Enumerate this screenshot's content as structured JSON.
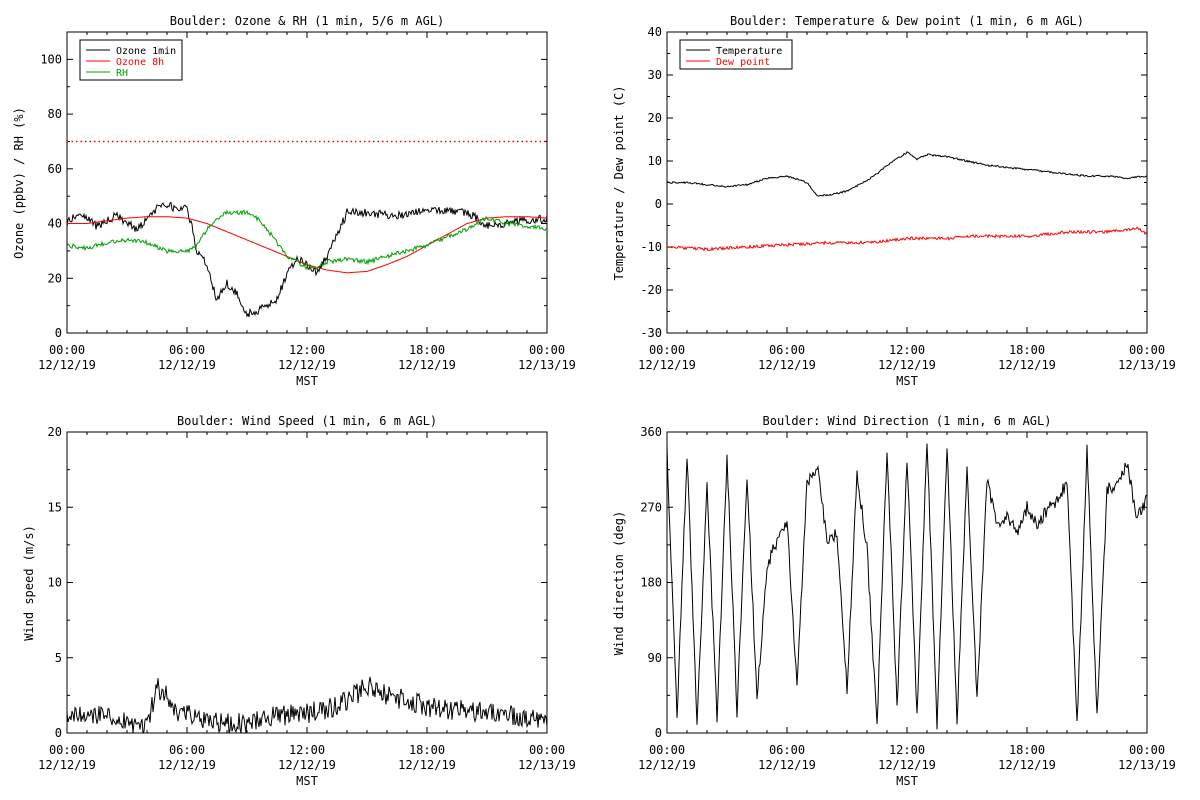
{
  "chart_data": [
    {
      "type": "line",
      "title": "Boulder: Ozone & RH (1 min, 5/6 m AGL)",
      "xlabel": "MST",
      "ylabel": "Ozone (ppbv) / RH (%)",
      "xlim": [
        0,
        24
      ],
      "ylim": [
        0,
        110
      ],
      "yticks": [
        0,
        20,
        40,
        60,
        80,
        100
      ],
      "xticks": [
        {
          "hour": 0,
          "time": "00:00",
          "date": "12/12/19"
        },
        {
          "hour": 6,
          "time": "06:00",
          "date": "12/12/19"
        },
        {
          "hour": 12,
          "time": "12:00",
          "date": "12/12/19"
        },
        {
          "hour": 18,
          "time": "18:00",
          "date": "12/12/19"
        },
        {
          "hour": 24,
          "time": "00:00",
          "date": "12/13/19"
        }
      ],
      "legend_position": "top-left",
      "reference_line": {
        "y": 70,
        "color": "#ff0000",
        "style": "dotted"
      },
      "series": [
        {
          "name": "Ozone 1min",
          "color": "#000000",
          "noise": 1.5,
          "x": [
            0,
            0.5,
            1,
            1.5,
            2,
            2.5,
            3,
            3.5,
            4,
            4.5,
            5,
            5.5,
            6,
            6.2,
            6.5,
            7,
            7.5,
            8,
            8.5,
            9,
            9.5,
            10,
            10.5,
            11,
            11.5,
            12,
            12.5,
            13,
            13.5,
            14,
            15,
            16,
            17,
            18,
            19,
            20,
            20.5,
            21,
            22,
            23,
            24
          ],
          "y": [
            40,
            44,
            42,
            39,
            41,
            43,
            40,
            38,
            41,
            46,
            47,
            45,
            46,
            40,
            30,
            25,
            12,
            18,
            14,
            7,
            8,
            10,
            12,
            22,
            27,
            25,
            22,
            28,
            36,
            44,
            44,
            43,
            43,
            45,
            45,
            44,
            42,
            39,
            40,
            41,
            42
          ]
        },
        {
          "name": "Ozone 8h",
          "color": "#ff0000",
          "noise": 0,
          "x": [
            0,
            1,
            2,
            3,
            4,
            5,
            6,
            7,
            8,
            9,
            10,
            11,
            12,
            13,
            14,
            15,
            16,
            17,
            18,
            19,
            20,
            21,
            22,
            23,
            24
          ],
          "y": [
            40,
            40,
            41,
            42,
            42.5,
            42.5,
            42,
            40,
            37,
            34,
            31,
            28,
            25,
            23,
            22,
            22.5,
            25,
            28,
            32,
            36,
            40,
            42,
            42.5,
            42.5,
            42
          ]
        },
        {
          "name": "RH",
          "color": "#00a000",
          "noise": 0.8,
          "x": [
            0,
            1,
            2,
            3,
            4,
            5,
            6,
            6.5,
            7,
            7.5,
            8,
            9,
            9.5,
            10,
            11,
            12,
            12.5,
            13,
            14,
            15,
            16,
            17,
            18,
            19,
            20,
            21,
            22,
            23,
            24
          ],
          "y": [
            32,
            31,
            33,
            34,
            33,
            30,
            30,
            32,
            38,
            42,
            44,
            44,
            42,
            38,
            28,
            24,
            24,
            26,
            27,
            26,
            28,
            30,
            32,
            35,
            38,
            42,
            40,
            39,
            38
          ]
        }
      ]
    },
    {
      "type": "line",
      "title": "Boulder: Temperature & Dew point (1 min, 6 m AGL)",
      "xlabel": "MST",
      "ylabel": "Temperature / Dew point (C)",
      "xlim": [
        0,
        24
      ],
      "ylim": [
        -30,
        40
      ],
      "yticks": [
        -30,
        -20,
        -10,
        0,
        10,
        20,
        30,
        40
      ],
      "xticks": [
        {
          "hour": 0,
          "time": "00:00",
          "date": "12/12/19"
        },
        {
          "hour": 6,
          "time": "06:00",
          "date": "12/12/19"
        },
        {
          "hour": 12,
          "time": "12:00",
          "date": "12/12/19"
        },
        {
          "hour": 18,
          "time": "18:00",
          "date": "12/12/19"
        },
        {
          "hour": 24,
          "time": "00:00",
          "date": "12/13/19"
        }
      ],
      "legend_position": "top-left",
      "series": [
        {
          "name": "Temperature",
          "color": "#000000",
          "noise": 0.2,
          "x": [
            0,
            1,
            2,
            3,
            4,
            5,
            6,
            7,
            7.5,
            8,
            9,
            10,
            10.5,
            11,
            11.5,
            12,
            12.5,
            13,
            14,
            15,
            16,
            17,
            18,
            19,
            20,
            21,
            22,
            23,
            24
          ],
          "y": [
            5,
            5,
            4.5,
            4,
            4.5,
            6,
            6.5,
            5,
            2,
            2,
            3,
            5.5,
            7,
            9,
            10.5,
            12,
            10.5,
            11.5,
            11,
            10,
            9,
            8.5,
            8,
            7.5,
            7,
            6.5,
            6.5,
            6,
            6.5
          ]
        },
        {
          "name": "Dew point",
          "color": "#ff0000",
          "noise": 0.35,
          "x": [
            0,
            2,
            4,
            6,
            8,
            10,
            11,
            12,
            13,
            14,
            15,
            16,
            17,
            18,
            19,
            20,
            21,
            22,
            23,
            23.5,
            24
          ],
          "y": [
            -10,
            -10.5,
            -10,
            -9.5,
            -9,
            -9,
            -8.5,
            -8,
            -8,
            -8,
            -7.5,
            -7.5,
            -7.5,
            -7.5,
            -7,
            -6.5,
            -6.5,
            -6.5,
            -6,
            -5.5,
            -7
          ]
        }
      ]
    },
    {
      "type": "line",
      "title": "Boulder: Wind Speed (1 min, 6 m AGL)",
      "xlabel": "MST",
      "ylabel": "Wind speed (m/s)",
      "xlim": [
        0,
        24
      ],
      "ylim": [
        0,
        20
      ],
      "yticks": [
        0,
        5,
        10,
        15,
        20
      ],
      "xticks": [
        {
          "hour": 0,
          "time": "00:00",
          "date": "12/12/19"
        },
        {
          "hour": 6,
          "time": "06:00",
          "date": "12/12/19"
        },
        {
          "hour": 12,
          "time": "12:00",
          "date": "12/12/19"
        },
        {
          "hour": 18,
          "time": "18:00",
          "date": "12/12/19"
        },
        {
          "hour": 24,
          "time": "00:00",
          "date": "12/13/19"
        }
      ],
      "series": [
        {
          "name": "",
          "color": "#000000",
          "noise": 0.7,
          "x": [
            0,
            1,
            2,
            3,
            3.5,
            4,
            4.5,
            5,
            5.5,
            6,
            6.5,
            7,
            8,
            9,
            10,
            11,
            12,
            13,
            14,
            14.5,
            15,
            15.5,
            16,
            17,
            18,
            19,
            20,
            21,
            22,
            23,
            24
          ],
          "y": [
            1.3,
            1.2,
            1,
            0.8,
            0.3,
            0.4,
            3,
            2.5,
            1.5,
            1.2,
            1,
            0.8,
            0.6,
            0.7,
            1,
            1.2,
            1.3,
            1.6,
            2.2,
            2.6,
            3.2,
            2.8,
            2.5,
            2.2,
            1.8,
            1.5,
            1.5,
            1.4,
            1.2,
            1,
            1
          ]
        }
      ]
    },
    {
      "type": "line",
      "title": "Boulder: Wind Direction (1 min, 6 m AGL)",
      "xlabel": "MST",
      "ylabel": "Wind direction (deg)",
      "xlim": [
        0,
        24
      ],
      "ylim": [
        0,
        360
      ],
      "yticks": [
        0,
        90,
        180,
        270,
        360
      ],
      "xticks": [
        {
          "hour": 0,
          "time": "00:00",
          "date": "12/12/19"
        },
        {
          "hour": 6,
          "time": "06:00",
          "date": "12/12/19"
        },
        {
          "hour": 12,
          "time": "12:00",
          "date": "12/12/19"
        },
        {
          "hour": 18,
          "time": "18:00",
          "date": "12/12/19"
        },
        {
          "hour": 24,
          "time": "00:00",
          "date": "12/13/19"
        }
      ],
      "series": [
        {
          "name": "",
          "color": "#000000",
          "noise": 8,
          "x": [
            0,
            0.5,
            1,
            1.5,
            2,
            2.5,
            3,
            3.5,
            4,
            4.5,
            5,
            5.5,
            6,
            6.5,
            7,
            7.5,
            8,
            8.5,
            9,
            9.5,
            10,
            10.5,
            11,
            11.5,
            12,
            12.5,
            13,
            13.5,
            14,
            14.5,
            15,
            15.5,
            16,
            16.5,
            17,
            17.5,
            18,
            18.5,
            19,
            19.5,
            20,
            20.5,
            21,
            21.5,
            22,
            22.5,
            23,
            23.5,
            24
          ],
          "y": [
            340,
            20,
            335,
            10,
            300,
            15,
            330,
            25,
            310,
            40,
            200,
            230,
            250,
            60,
            300,
            320,
            230,
            240,
            50,
            310,
            220,
            10,
            340,
            30,
            330,
            20,
            350,
            10,
            345,
            15,
            320,
            40,
            300,
            250,
            260,
            240,
            270,
            250,
            265,
            280,
            300,
            10,
            340,
            20,
            290,
            300,
            320,
            260,
            280
          ]
        }
      ]
    }
  ]
}
